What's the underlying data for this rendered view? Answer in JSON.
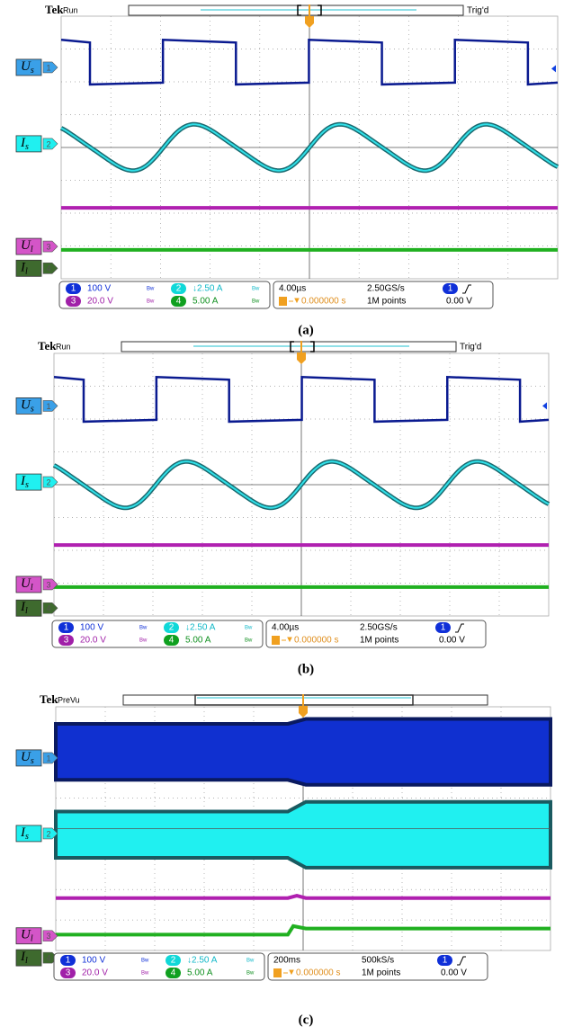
{
  "panels": [
    {
      "caption": "(a)",
      "brand": "Tek",
      "status": "Run",
      "trigger_state": "Trig'd",
      "channel_labels": [
        {
          "symbol": "U",
          "subscript": "s",
          "number": "1"
        },
        {
          "symbol": "I",
          "subscript": "s",
          "number": "2"
        },
        {
          "symbol": "U",
          "subscript": "l",
          "number": "3"
        },
        {
          "symbol": "I",
          "subscript": "l",
          "number": "4"
        }
      ],
      "readout": {
        "channels": [
          {
            "number": "1",
            "scale": "100 V",
            "bw": "Bw"
          },
          {
            "number": "3",
            "scale": "20.0 V",
            "bw": "Bw"
          },
          {
            "number": "2",
            "scale": "↓2.50 A",
            "bw": "Bw"
          },
          {
            "number": "4",
            "scale": "5.00 A",
            "bw": "Bw"
          }
        ],
        "timebase": "4.00µs",
        "sample_rate": "2.50GS/s",
        "record_length": "1M points",
        "trigger_position": "0.000000 s",
        "trigger_channel": "1",
        "trigger_level": "0.00 V"
      }
    },
    {
      "caption": "(b)",
      "brand": "Tek",
      "status": "Run",
      "trigger_state": "Trig'd",
      "channel_labels": [
        {
          "symbol": "U",
          "subscript": "s",
          "number": "1"
        },
        {
          "symbol": "I",
          "subscript": "s",
          "number": "2"
        },
        {
          "symbol": "U",
          "subscript": "l",
          "number": "3"
        },
        {
          "symbol": "I",
          "subscript": "l",
          "number": "4"
        }
      ],
      "readout": {
        "channels": [
          {
            "number": "1",
            "scale": "100 V",
            "bw": "Bw"
          },
          {
            "number": "3",
            "scale": "20.0 V",
            "bw": "Bw"
          },
          {
            "number": "2",
            "scale": "↓2.50 A",
            "bw": "Bw"
          },
          {
            "number": "4",
            "scale": "5.00 A",
            "bw": "Bw"
          }
        ],
        "timebase": "4.00µs",
        "sample_rate": "2.50GS/s",
        "record_length": "1M points",
        "trigger_position": "0.000000 s",
        "trigger_channel": "1",
        "trigger_level": "0.00 V"
      }
    },
    {
      "caption": "(c)",
      "brand": "Tek",
      "status": "PreVu",
      "channel_labels": [
        {
          "symbol": "U",
          "subscript": "s",
          "number": "1"
        },
        {
          "symbol": "I",
          "subscript": "s",
          "number": "2"
        },
        {
          "symbol": "U",
          "subscript": "l",
          "number": "3"
        },
        {
          "symbol": "I",
          "subscript": "l",
          "number": "4"
        }
      ],
      "readout": {
        "channels": [
          {
            "number": "1",
            "scale": "100 V",
            "bw": "Bw"
          },
          {
            "number": "3",
            "scale": "20.0 V",
            "bw": "Bw"
          },
          {
            "number": "2",
            "scale": "↓2.50 A",
            "bw": "Bw"
          },
          {
            "number": "4",
            "scale": "5.00 A",
            "bw": "Bw"
          }
        ],
        "timebase": "200ms",
        "sample_rate": "500kS/s",
        "record_length": "1M points",
        "trigger_position": "0.000000 s",
        "trigger_channel": "1",
        "trigger_level": "0.00 V"
      }
    }
  ]
}
